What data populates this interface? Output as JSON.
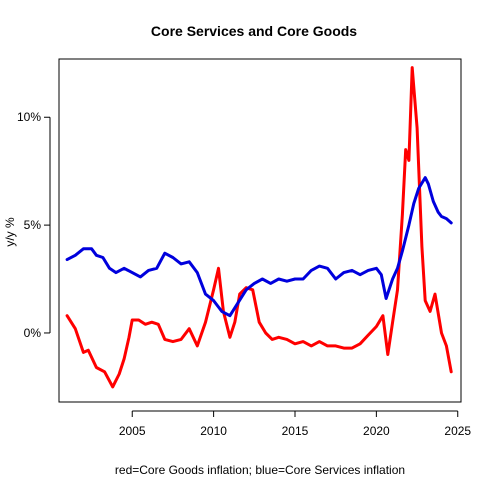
{
  "chart_data": {
    "type": "line",
    "title": "Core Services and Core Goods",
    "xlabel": "red=Core Goods inflation; blue=Core Services inflation",
    "ylabel": "y/y %",
    "xlim": [
      2000.5,
      2025.2
    ],
    "ylim": [
      -3.2,
      12.7
    ],
    "x_ticks": [
      2005,
      2010,
      2015,
      2020,
      2025
    ],
    "x_tick_labels": [
      "2005",
      "2010",
      "2015",
      "2020",
      "2025"
    ],
    "y_ticks": [
      0,
      5,
      10
    ],
    "y_tick_labels": [
      "0%",
      "5%",
      "10%"
    ],
    "grid": false,
    "series": [
      {
        "color": "#ff0000",
        "x": [
          2001.0,
          2001.5,
          2002.0,
          2002.3,
          2002.8,
          2003.3,
          2003.8,
          2004.2,
          2004.5,
          2004.8,
          2005.0,
          2005.4,
          2005.8,
          2006.2,
          2006.6,
          2007.0,
          2007.5,
          2008.0,
          2008.5,
          2009.0,
          2009.5,
          2010.0,
          2010.3,
          2010.6,
          2011.0,
          2011.3,
          2011.6,
          2012.0,
          2012.4,
          2012.8,
          2013.2,
          2013.6,
          2014.0,
          2014.5,
          2015.0,
          2015.5,
          2016.0,
          2016.5,
          2017.0,
          2017.5,
          2018.0,
          2018.5,
          2019.0,
          2019.5,
          2020.0,
          2020.4,
          2020.7,
          2021.0,
          2021.3,
          2021.6,
          2021.8,
          2022.0,
          2022.2,
          2022.5,
          2022.8,
          2023.0,
          2023.3,
          2023.6,
          2024.0,
          2024.3,
          2024.6
        ],
        "y": [
          0.8,
          0.2,
          -0.9,
          -0.8,
          -1.6,
          -1.8,
          -2.5,
          -1.9,
          -1.2,
          -0.2,
          0.6,
          0.6,
          0.4,
          0.5,
          0.4,
          -0.3,
          -0.4,
          -0.3,
          0.2,
          -0.6,
          0.5,
          2.0,
          3.0,
          1.0,
          -0.2,
          0.5,
          1.8,
          2.1,
          2.0,
          0.5,
          0.0,
          -0.3,
          -0.2,
          -0.3,
          -0.5,
          -0.4,
          -0.6,
          -0.4,
          -0.6,
          -0.6,
          -0.7,
          -0.7,
          -0.5,
          -0.1,
          0.3,
          0.8,
          -1.0,
          0.5,
          2.0,
          5.5,
          8.5,
          8.0,
          12.3,
          9.5,
          4.0,
          1.5,
          1.0,
          1.8,
          0.0,
          -0.6,
          -1.8
        ]
      },
      {
        "color": "#0000dd",
        "x": [
          2001.0,
          2001.5,
          2002.0,
          2002.5,
          2002.8,
          2003.2,
          2003.6,
          2004.0,
          2004.5,
          2005.0,
          2005.5,
          2006.0,
          2006.5,
          2007.0,
          2007.5,
          2008.0,
          2008.5,
          2009.0,
          2009.5,
          2010.0,
          2010.5,
          2011.0,
          2011.5,
          2012.0,
          2012.5,
          2013.0,
          2013.5,
          2014.0,
          2014.5,
          2015.0,
          2015.5,
          2016.0,
          2016.5,
          2017.0,
          2017.5,
          2018.0,
          2018.5,
          2019.0,
          2019.5,
          2020.0,
          2020.3,
          2020.6,
          2021.0,
          2021.3,
          2021.6,
          2022.0,
          2022.3,
          2022.6,
          2023.0,
          2023.2,
          2023.5,
          2023.8,
          2024.0,
          2024.3,
          2024.6
        ],
        "y": [
          3.4,
          3.6,
          3.9,
          3.9,
          3.6,
          3.5,
          3.0,
          2.8,
          3.0,
          2.8,
          2.6,
          2.9,
          3.0,
          3.7,
          3.5,
          3.2,
          3.3,
          2.8,
          1.8,
          1.5,
          1.0,
          0.8,
          1.4,
          2.0,
          2.3,
          2.5,
          2.3,
          2.5,
          2.4,
          2.5,
          2.5,
          2.9,
          3.1,
          3.0,
          2.5,
          2.8,
          2.9,
          2.7,
          2.9,
          3.0,
          2.7,
          1.6,
          2.5,
          3.0,
          3.8,
          5.0,
          6.0,
          6.7,
          7.2,
          6.9,
          6.1,
          5.6,
          5.4,
          5.3,
          5.1
        ]
      }
    ]
  }
}
